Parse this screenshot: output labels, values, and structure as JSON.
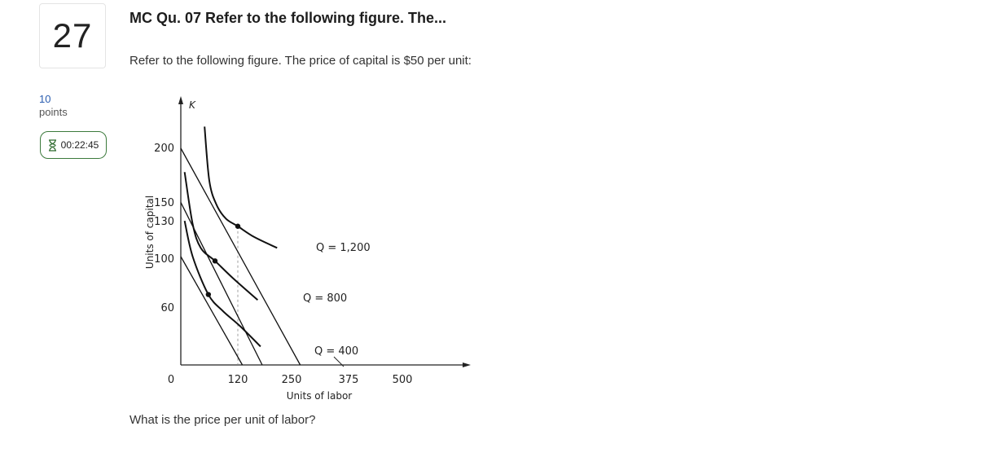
{
  "question": {
    "number": "27",
    "points_value": "10",
    "points_label": "points",
    "timer": "00:22:45",
    "title": "MC Qu. 07 Refer to the following figure. The...",
    "prompt": "Refer to the following figure. The price of capital is $50 per unit:",
    "ask": "What is the price per unit of labor?"
  },
  "chart_data": {
    "type": "line",
    "x_axis_letter": "",
    "y_axis_letter": "K",
    "xlabel": "Units of labor",
    "ylabel": "Units of capital",
    "x_ticks": [
      "0",
      "120",
      "250",
      "375",
      "500"
    ],
    "y_ticks": [
      "200",
      "150",
      "130",
      "100",
      "60"
    ],
    "isoquants": [
      {
        "label": "Q = 1,200",
        "points": [
          [
            50,
            220
          ],
          [
            60,
            170
          ],
          [
            75,
            148
          ],
          [
            95,
            135
          ],
          [
            120,
            128
          ],
          [
            160,
            118
          ],
          [
            215,
            108
          ]
        ]
      },
      {
        "label": "Q = 800",
        "points": [
          [
            8,
            178
          ],
          [
            25,
            130
          ],
          [
            42,
            108
          ],
          [
            72,
            96
          ],
          [
            110,
            80
          ],
          [
            168,
            60
          ]
        ]
      },
      {
        "label": "Q = 400",
        "points": [
          [
            8,
            133
          ],
          [
            25,
            100
          ],
          [
            58,
            65
          ],
          [
            88,
            50
          ],
          [
            125,
            36
          ],
          [
            175,
            17
          ]
        ]
      }
    ],
    "isocosts": [
      {
        "points": [
          [
            0,
            200
          ],
          [
            269,
            0
          ]
        ]
      },
      {
        "points": [
          [
            0,
            150
          ],
          [
            179,
            0
          ]
        ]
      },
      {
        "points": [
          [
            0,
            100
          ],
          [
            131,
            0
          ]
        ]
      }
    ],
    "tangency_points": [
      [
        120,
        128
      ],
      [
        72,
        96
      ],
      [
        58,
        65
      ]
    ],
    "reference_lines": {
      "horizontal": [
        130,
        60
      ],
      "vertical_dashed": [
        120
      ]
    },
    "xlim": [
      0,
      500
    ],
    "ylim": [
      0,
      220
    ]
  }
}
